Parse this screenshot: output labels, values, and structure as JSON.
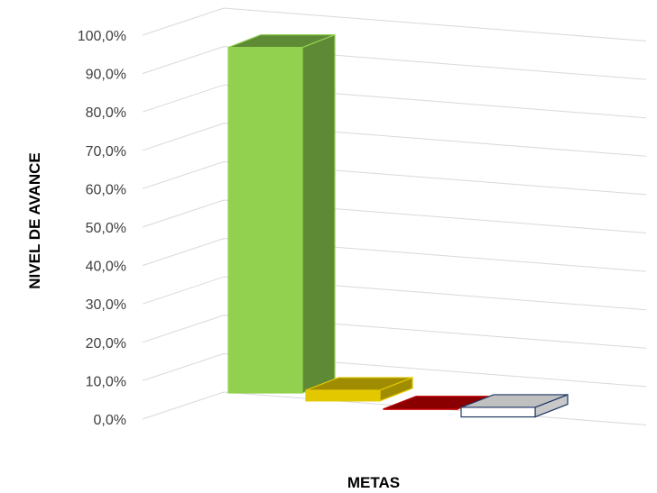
{
  "chart_data": {
    "type": "bar",
    "three_d": true,
    "categories": [
      "",
      "",
      "",
      ""
    ],
    "values": [
      90.0,
      2.8,
      0.0,
      2.5
    ],
    "colors": [
      "#92d050",
      "#e3c800",
      "#c00000",
      "#ffffff"
    ],
    "side_colors": [
      "#5e8a36",
      "#a08c00",
      "#8a0000",
      "#c8c8c8"
    ],
    "top_colors": [
      "#5e8a36",
      "#a08c00",
      "#8a0000",
      "#c0c0c0"
    ],
    "outline_colors": [
      "#92d050",
      "#e3c800",
      "#c00000",
      "#1f3864"
    ],
    "ylim": [
      0,
      100
    ],
    "yticks": [
      0,
      10,
      20,
      30,
      40,
      50,
      60,
      70,
      80,
      90,
      100
    ],
    "ytick_labels": [
      "0,0%",
      "10,0%",
      "20,0%",
      "30,0%",
      "40,0%",
      "50,0%",
      "60,0%",
      "70,0%",
      "80,0%",
      "90,0%",
      "100,0%"
    ],
    "xlabel": "METAS",
    "ylabel": "NIVEL DE AVANCE",
    "grid": true,
    "legend": "none"
  }
}
